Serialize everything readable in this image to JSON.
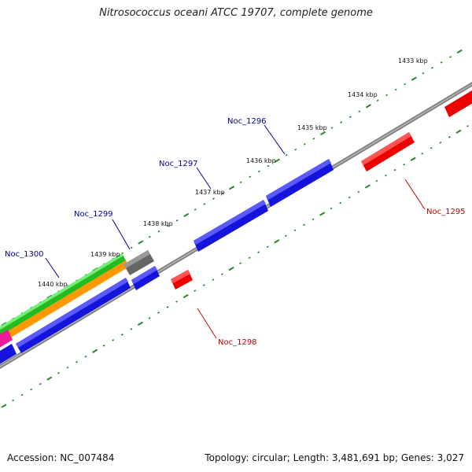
{
  "title": "Nitrosococcus oceani ATCC 19707, complete genome",
  "footer": {
    "accession": "Accession: NC_007484",
    "summary": "Topology: circular; Length: 3,481,691 bp; Genes: 3,027"
  },
  "ticks": [
    "1433 kbp",
    "1434 kbp",
    "1435 kbp",
    "1436 kbp",
    "1437 kbp",
    "1438 kbp",
    "1439 kbp",
    "1440 kbp"
  ],
  "genes": [
    {
      "name": "Noc_1295",
      "color": "#cc0000"
    },
    {
      "name": "Noc_1296",
      "color": "#000099"
    },
    {
      "name": "Noc_1297",
      "color": "#000099"
    },
    {
      "name": "Noc_1298",
      "color": "#cc0000"
    },
    {
      "name": "Noc_1299",
      "color": "#000099"
    },
    {
      "name": "Noc_1300",
      "color": "#000099"
    }
  ],
  "colors": {
    "forward_gene": "#1a1aee",
    "reverse_gene": "#ee0000",
    "green_feature": "#33cc33",
    "orange_feature": "#ff9900",
    "gray_feature": "#777777",
    "pink_feature": "#ff33aa",
    "backbone": "#888888",
    "tick_dot": "#228822"
  }
}
